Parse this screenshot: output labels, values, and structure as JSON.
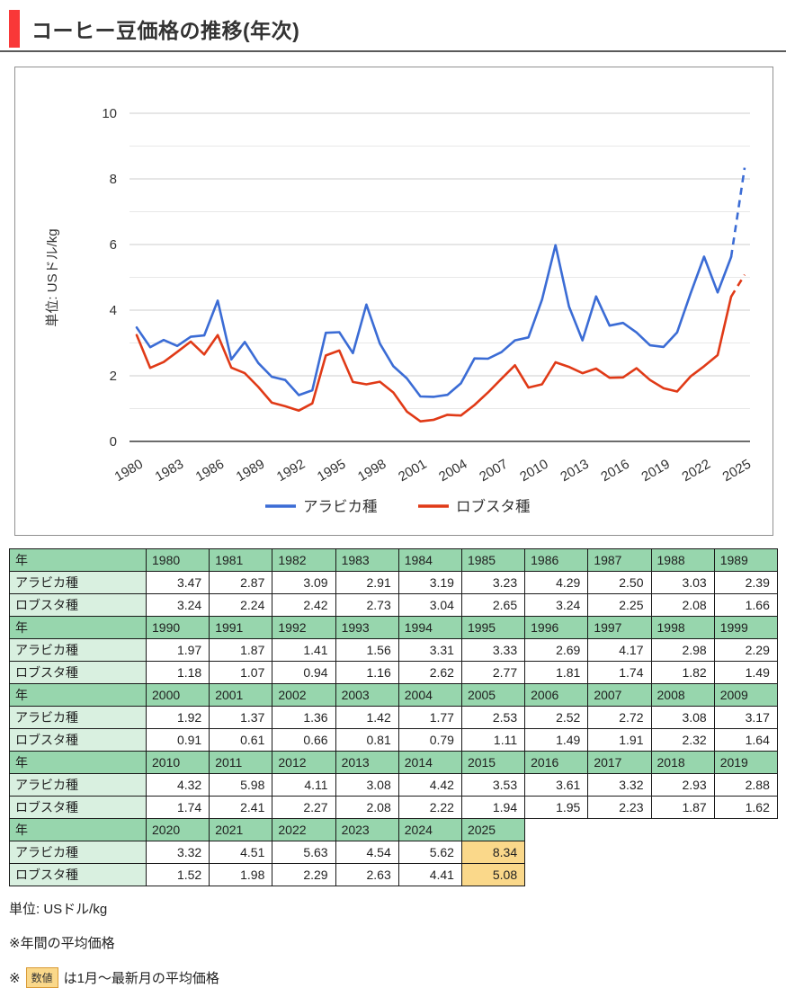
{
  "title": "コーヒー豆価格の推移(年次)",
  "accent_color": "#f93838",
  "chart_data": {
    "type": "line",
    "x": [
      1980,
      1981,
      1982,
      1983,
      1984,
      1985,
      1986,
      1987,
      1988,
      1989,
      1990,
      1991,
      1992,
      1993,
      1994,
      1995,
      1996,
      1997,
      1998,
      1999,
      2000,
      2001,
      2002,
      2003,
      2004,
      2005,
      2006,
      2007,
      2008,
      2009,
      2010,
      2011,
      2012,
      2013,
      2014,
      2015,
      2016,
      2017,
      2018,
      2019,
      2020,
      2021,
      2022,
      2023,
      2024,
      2025
    ],
    "series": [
      {
        "name": "アラビカ種",
        "color": "#3b6cd5",
        "values": [
          3.47,
          2.87,
          3.09,
          2.91,
          3.19,
          3.23,
          4.29,
          2.5,
          3.03,
          2.39,
          1.97,
          1.87,
          1.41,
          1.56,
          3.31,
          3.33,
          2.69,
          4.17,
          2.98,
          2.29,
          1.92,
          1.37,
          1.36,
          1.42,
          1.77,
          2.53,
          2.52,
          2.72,
          3.08,
          3.17,
          4.32,
          5.98,
          4.11,
          3.08,
          4.42,
          3.53,
          3.61,
          3.32,
          2.93,
          2.88,
          3.32,
          4.51,
          5.63,
          4.54,
          5.62,
          8.34
        ]
      },
      {
        "name": "ロブスタ種",
        "color": "#e03a17",
        "values": [
          3.24,
          2.24,
          2.42,
          2.73,
          3.04,
          2.65,
          3.24,
          2.25,
          2.08,
          1.66,
          1.18,
          1.07,
          0.94,
          1.16,
          2.62,
          2.77,
          1.81,
          1.74,
          1.82,
          1.49,
          0.91,
          0.61,
          0.66,
          0.81,
          0.79,
          1.11,
          1.49,
          1.91,
          2.32,
          1.64,
          1.74,
          2.41,
          2.27,
          2.08,
          2.22,
          1.94,
          1.95,
          2.23,
          1.87,
          1.62,
          1.52,
          1.98,
          2.29,
          2.63,
          4.41,
          5.08
        ]
      }
    ],
    "ylabel": "単位: USドル/kg",
    "ylim": [
      0,
      10
    ],
    "yticks": [
      0,
      2,
      4,
      6,
      8,
      10
    ],
    "xticks": [
      1980,
      1983,
      1986,
      1989,
      1992,
      1995,
      1998,
      2001,
      2004,
      2007,
      2010,
      2013,
      2016,
      2019,
      2022,
      2025
    ],
    "grid": "horizontal every 1 unit, minor at odd values",
    "legend_position": "bottom",
    "last_segment_dashed": true
  },
  "table": {
    "row_headers": {
      "year": "年",
      "arabica": "アラビカ種",
      "robusta": "ロブスタ種"
    },
    "header_color": "#97d6ad",
    "label_color": "#d9f0e0",
    "highlight_color": "#fad88a",
    "blocks": [
      {
        "years": [
          1980,
          1981,
          1982,
          1983,
          1984,
          1985,
          1986,
          1987,
          1988,
          1989
        ],
        "arabica": [
          3.47,
          2.87,
          3.09,
          2.91,
          3.19,
          3.23,
          4.29,
          2.5,
          3.03,
          2.39
        ],
        "robusta": [
          3.24,
          2.24,
          2.42,
          2.73,
          3.04,
          2.65,
          3.24,
          2.25,
          2.08,
          1.66
        ],
        "highlight_years": []
      },
      {
        "years": [
          1990,
          1991,
          1992,
          1993,
          1994,
          1995,
          1996,
          1997,
          1998,
          1999
        ],
        "arabica": [
          1.97,
          1.87,
          1.41,
          1.56,
          3.31,
          3.33,
          2.69,
          4.17,
          2.98,
          2.29
        ],
        "robusta": [
          1.18,
          1.07,
          0.94,
          1.16,
          2.62,
          2.77,
          1.81,
          1.74,
          1.82,
          1.49
        ],
        "highlight_years": []
      },
      {
        "years": [
          2000,
          2001,
          2002,
          2003,
          2004,
          2005,
          2006,
          2007,
          2008,
          2009
        ],
        "arabica": [
          1.92,
          1.37,
          1.36,
          1.42,
          1.77,
          2.53,
          2.52,
          2.72,
          3.08,
          3.17
        ],
        "robusta": [
          0.91,
          0.61,
          0.66,
          0.81,
          0.79,
          1.11,
          1.49,
          1.91,
          2.32,
          1.64
        ],
        "highlight_years": []
      },
      {
        "years": [
          2010,
          2011,
          2012,
          2013,
          2014,
          2015,
          2016,
          2017,
          2018,
          2019
        ],
        "arabica": [
          4.32,
          5.98,
          4.11,
          3.08,
          4.42,
          3.53,
          3.61,
          3.32,
          2.93,
          2.88
        ],
        "robusta": [
          1.74,
          2.41,
          2.27,
          2.08,
          2.22,
          1.94,
          1.95,
          2.23,
          1.87,
          1.62
        ],
        "highlight_years": []
      },
      {
        "years": [
          2020,
          2021,
          2022,
          2023,
          2024,
          2025
        ],
        "arabica": [
          3.32,
          4.51,
          5.63,
          4.54,
          5.62,
          8.34
        ],
        "robusta": [
          1.52,
          1.98,
          2.29,
          2.63,
          4.41,
          5.08
        ],
        "highlight_years": [
          2025
        ]
      }
    ]
  },
  "notes": {
    "unit": "単位: USドル/kg",
    "annual": "※年間の平均価格",
    "partial_prefix": "※",
    "partial_badge": "数値",
    "partial_suffix": "は1月〜最新月の平均価格"
  }
}
